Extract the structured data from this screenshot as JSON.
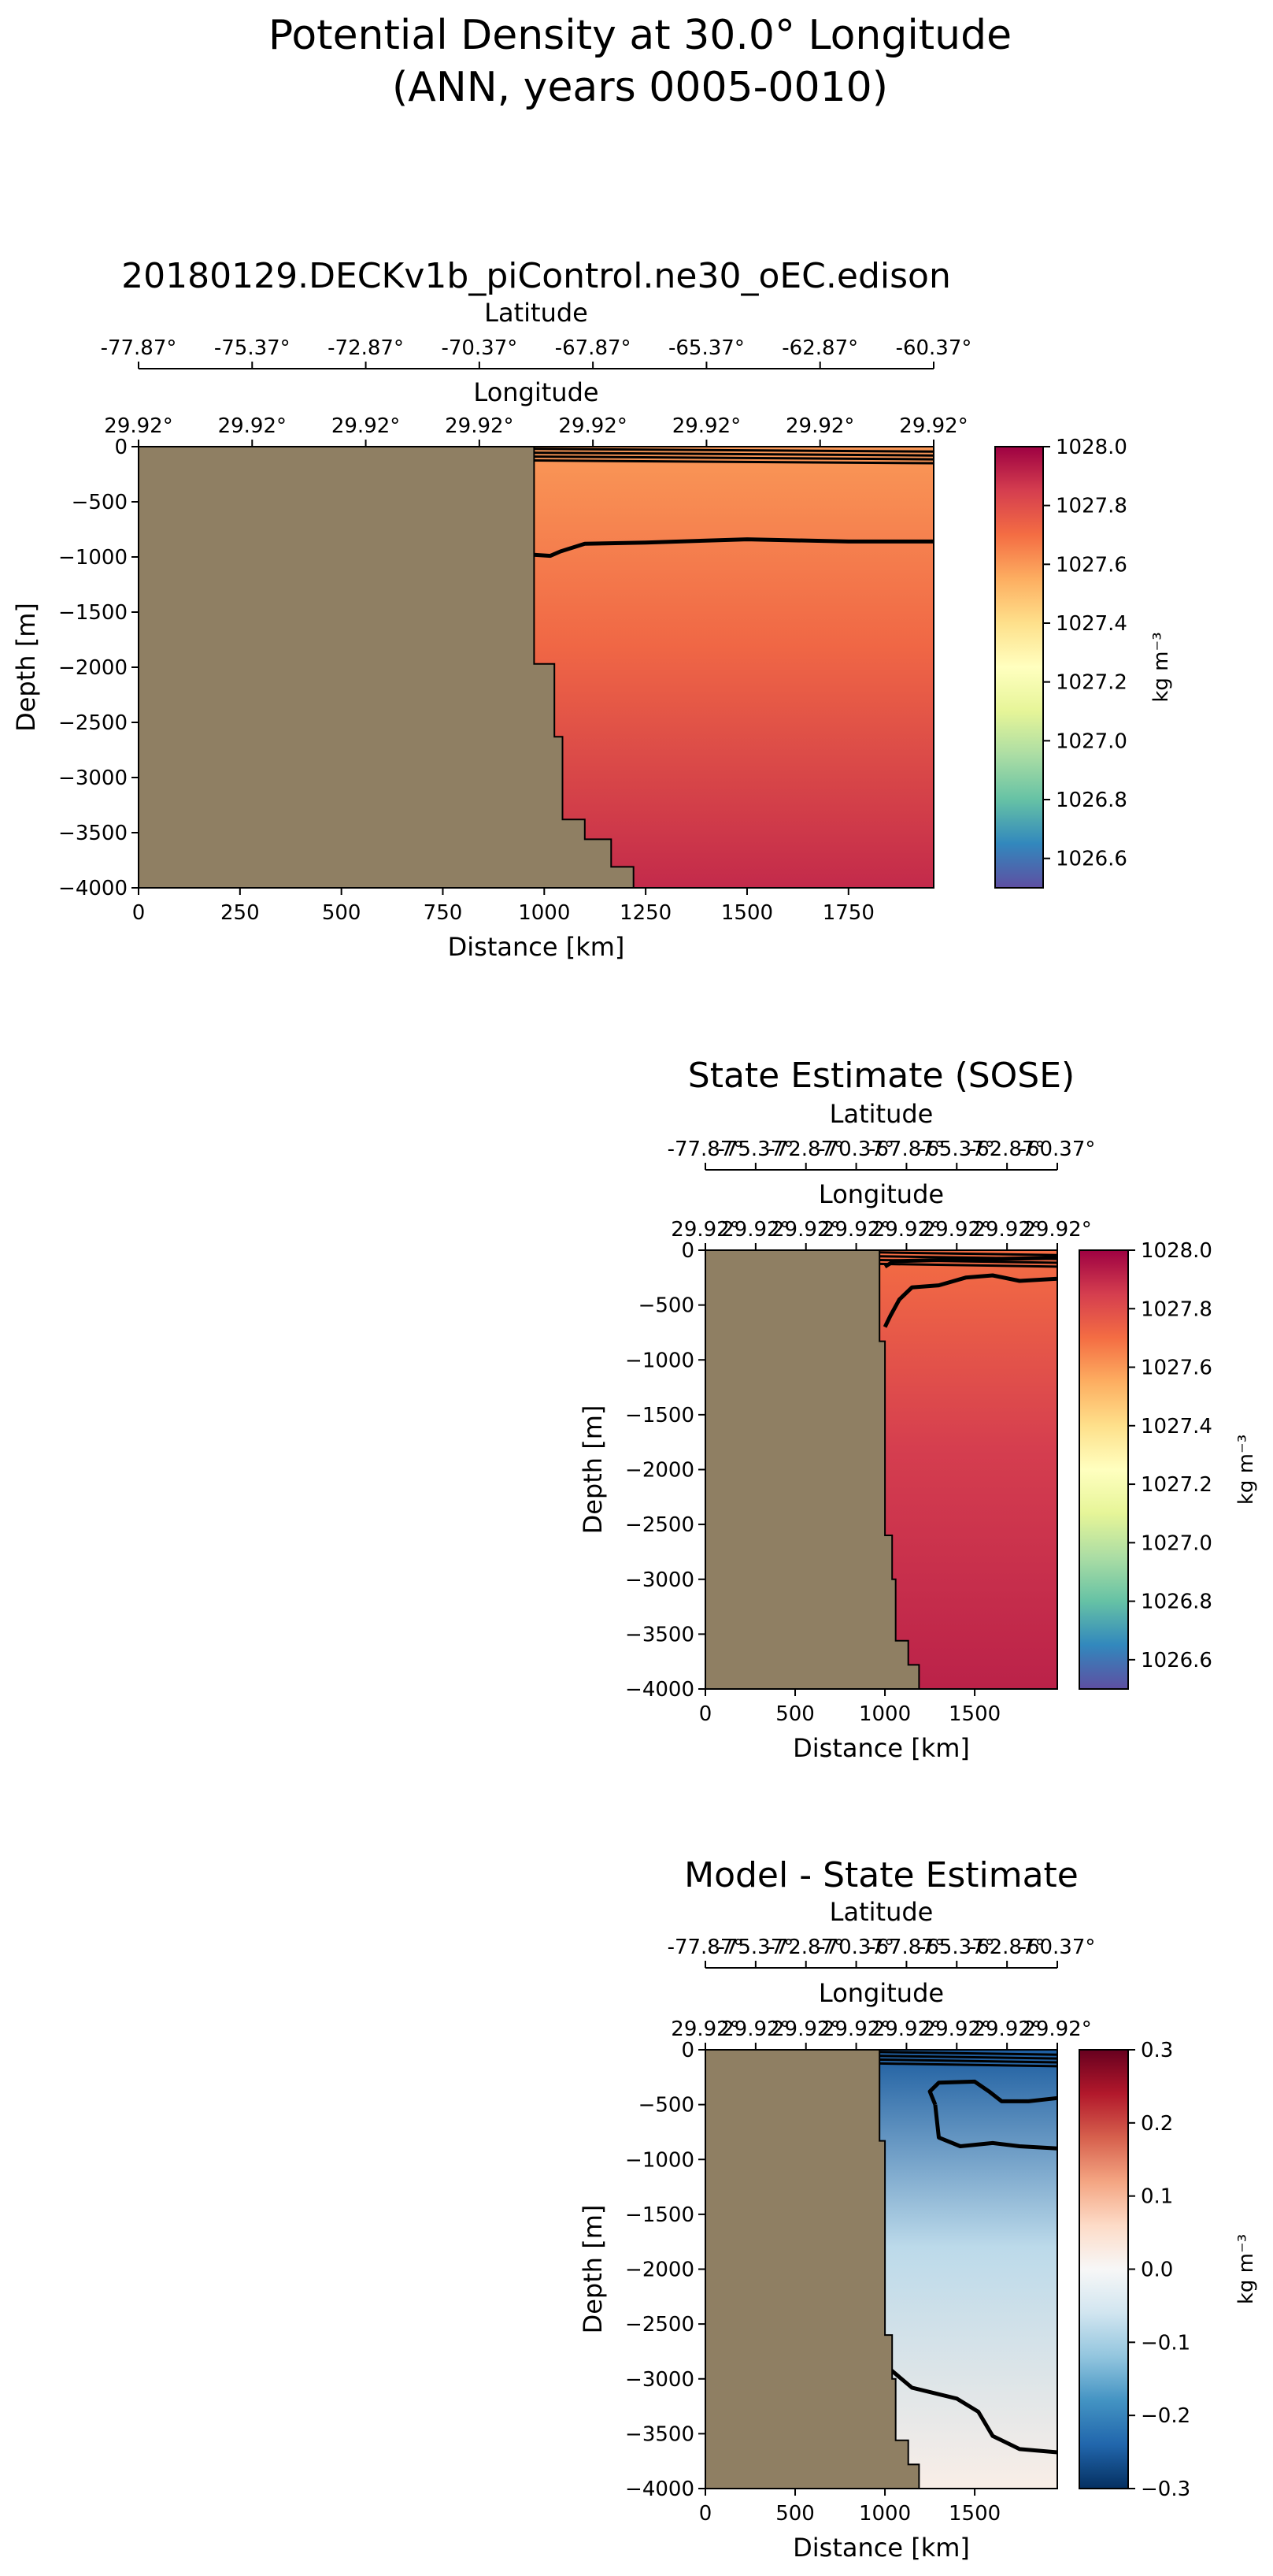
{
  "figure": {
    "title_line1": "Potential Density at 30.0° Longitude",
    "title_line2": "(ANN, years 0005-0010)"
  },
  "colors": {
    "land": "#8f7f63",
    "contour": "#000000"
  },
  "chart_data": [
    {
      "type": "heatmap",
      "title": "20180129.DECKv1b_piControl.ne30_oEC.edison",
      "xlabel": "Distance [km]",
      "ylabel": "Depth [m]",
      "top_axis1_label": "Latitude",
      "top_axis1_ticks": [
        "-77.87°",
        "-75.37°",
        "-72.87°",
        "-70.37°",
        "-67.87°",
        "-65.37°",
        "-62.87°",
        "-60.37°"
      ],
      "top_axis2_label": "Longitude",
      "top_axis2_ticks": [
        "29.92°",
        "29.92°",
        "29.92°",
        "29.92°",
        "29.92°",
        "29.92°",
        "29.92°",
        "29.92°"
      ],
      "xlim": [
        0,
        1960
      ],
      "ylim": [
        -4000,
        0
      ],
      "xticks": [
        0,
        250,
        500,
        750,
        1000,
        1250,
        1500,
        1750
      ],
      "yticks": [
        0,
        -500,
        -1000,
        -1500,
        -2000,
        -2500,
        -3000,
        -3500,
        -4000
      ],
      "colorbar": {
        "label": "kg m⁻³",
        "range": [
          1026.5,
          1028.0
        ],
        "ticks": [
          1026.6,
          1026.8,
          1027.0,
          1027.2,
          1027.4,
          1027.6,
          1027.8,
          1028.0
        ],
        "cmap": "Spectral_r"
      },
      "bathymetry": [
        [
          0,
          0
        ],
        [
          975,
          0
        ],
        [
          975,
          -1970
        ],
        [
          1025,
          -1970
        ],
        [
          1025,
          -2630
        ],
        [
          1045,
          -2630
        ],
        [
          1045,
          -3380
        ],
        [
          1100,
          -3380
        ],
        [
          1100,
          -3560
        ],
        [
          1165,
          -3560
        ],
        [
          1165,
          -3810
        ],
        [
          1220,
          -3810
        ],
        [
          1220,
          -4000
        ],
        [
          0,
          -4000
        ]
      ],
      "density_field": {
        "surface": 1027.6,
        "mid": 1027.72,
        "bottom": 1027.9
      },
      "contours": [
        [
          [
            975,
            -980
          ],
          [
            1015,
            -990
          ],
          [
            1040,
            -950
          ],
          [
            1100,
            -880
          ],
          [
            1250,
            -870
          ],
          [
            1500,
            -840
          ],
          [
            1750,
            -860
          ],
          [
            1960,
            -860
          ]
        ]
      ]
    },
    {
      "type": "heatmap",
      "title": "State Estimate (SOSE)",
      "xlabel": "Distance [km]",
      "ylabel": "Depth [m]",
      "top_axis1_label": "Latitude",
      "top_axis1_ticks": [
        "-77.87°",
        "-75.37°",
        "-72.87°",
        "-70.37°",
        "-67.87°",
        "-65.37°",
        "-62.87°",
        "-60.37°"
      ],
      "top_axis2_label": "Longitude",
      "top_axis2_ticks": [
        "29.92°",
        "29.92°",
        "29.92°",
        "29.92°",
        "29.92°",
        "29.92°",
        "29.92°",
        "29.92°"
      ],
      "xlim": [
        0,
        1960
      ],
      "ylim": [
        -4000,
        0
      ],
      "xticks": [
        0,
        500,
        1000,
        1500
      ],
      "yticks": [
        0,
        -500,
        -1000,
        -1500,
        -2000,
        -2500,
        -3000,
        -3500,
        -4000
      ],
      "colorbar": {
        "label": "kg m⁻³",
        "range": [
          1026.5,
          1028.0
        ],
        "ticks": [
          1026.6,
          1026.8,
          1027.0,
          1027.2,
          1027.4,
          1027.6,
          1027.8,
          1028.0
        ],
        "cmap": "Spectral_r"
      },
      "bathymetry": [
        [
          0,
          0
        ],
        [
          970,
          0
        ],
        [
          970,
          -830
        ],
        [
          1000,
          -830
        ],
        [
          1000,
          -2600
        ],
        [
          1040,
          -2600
        ],
        [
          1040,
          -3000
        ],
        [
          1060,
          -3000
        ],
        [
          1060,
          -3560
        ],
        [
          1130,
          -3560
        ],
        [
          1130,
          -3780
        ],
        [
          1190,
          -3780
        ],
        [
          1190,
          -4000
        ],
        [
          0,
          -4000
        ]
      ],
      "density_field": {
        "surface": 1027.7,
        "mid": 1027.85,
        "bottom": 1027.92
      },
      "contours": [
        [
          [
            1000,
            -700
          ],
          [
            1030,
            -600
          ],
          [
            1080,
            -450
          ],
          [
            1150,
            -340
          ],
          [
            1300,
            -320
          ],
          [
            1450,
            -250
          ],
          [
            1600,
            -230
          ],
          [
            1750,
            -280
          ],
          [
            1960,
            -260
          ]
        ],
        [
          [
            1000,
            -150
          ],
          [
            1050,
            -100
          ],
          [
            1300,
            -90
          ],
          [
            1600,
            -80
          ],
          [
            1960,
            -70
          ]
        ]
      ]
    },
    {
      "type": "heatmap",
      "title": "Model - State Estimate",
      "xlabel": "Distance [km]",
      "ylabel": "Depth [m]",
      "top_axis1_label": "Latitude",
      "top_axis1_ticks": [
        "-77.87°",
        "-75.37°",
        "-72.87°",
        "-70.37°",
        "-67.87°",
        "-65.37°",
        "-62.87°",
        "-60.37°"
      ],
      "top_axis2_label": "Longitude",
      "top_axis2_ticks": [
        "29.92°",
        "29.92°",
        "29.92°",
        "29.92°",
        "29.92°",
        "29.92°",
        "29.92°",
        "29.92°"
      ],
      "xlim": [
        0,
        1960
      ],
      "ylim": [
        -4000,
        0
      ],
      "xticks": [
        0,
        500,
        1000,
        1500
      ],
      "yticks": [
        0,
        -500,
        -1000,
        -1500,
        -2000,
        -2500,
        -3000,
        -3500,
        -4000
      ],
      "colorbar": {
        "label": "kg m⁻³",
        "range": [
          -0.3,
          0.3
        ],
        "ticks": [
          -0.3,
          -0.2,
          -0.1,
          0.0,
          0.1,
          0.2,
          0.3
        ],
        "cmap": "RdBu_r"
      },
      "bathymetry": [
        [
          0,
          0
        ],
        [
          970,
          0
        ],
        [
          970,
          -830
        ],
        [
          1000,
          -830
        ],
        [
          1000,
          -2600
        ],
        [
          1040,
          -2600
        ],
        [
          1040,
          -3000
        ],
        [
          1060,
          -3000
        ],
        [
          1060,
          -3560
        ],
        [
          1130,
          -3560
        ],
        [
          1130,
          -3780
        ],
        [
          1190,
          -3780
        ],
        [
          1190,
          -4000
        ],
        [
          0,
          -4000
        ]
      ],
      "density_field": {
        "surface": -0.25,
        "mid": -0.08,
        "bottom": 0.02
      },
      "contours": [
        [
          [
            1280,
            -500
          ],
          [
            1250,
            -380
          ],
          [
            1300,
            -300
          ],
          [
            1500,
            -290
          ],
          [
            1580,
            -380
          ],
          [
            1650,
            -470
          ],
          [
            1800,
            -470
          ],
          [
            1960,
            -440
          ]
        ],
        [
          [
            1280,
            -500
          ],
          [
            1300,
            -800
          ],
          [
            1420,
            -880
          ],
          [
            1600,
            -850
          ],
          [
            1750,
            -880
          ],
          [
            1960,
            -900
          ]
        ],
        [
          [
            1020,
            -2900
          ],
          [
            1150,
            -3080
          ],
          [
            1400,
            -3180
          ],
          [
            1520,
            -3300
          ],
          [
            1600,
            -3520
          ],
          [
            1750,
            -3640
          ],
          [
            1960,
            -3670
          ]
        ]
      ]
    }
  ]
}
